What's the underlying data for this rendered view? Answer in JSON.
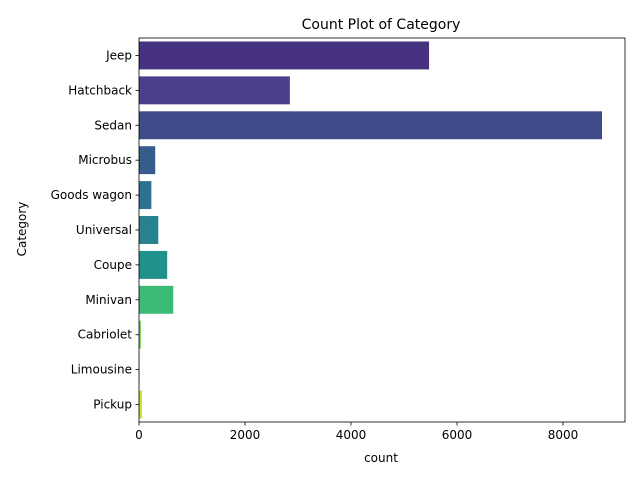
{
  "chart_data": {
    "type": "bar",
    "orientation": "horizontal",
    "title": "Count Plot of Category",
    "xlabel": "count",
    "ylabel": "Category",
    "categories": [
      "Jeep",
      "Hatchback",
      "Sedan",
      "Microbus",
      "Goods wagon",
      "Universal",
      "Coupe",
      "Minivan",
      "Cabriolet",
      "Limousine",
      "Pickup"
    ],
    "values": [
      5473,
      2847,
      8736,
      306,
      233,
      364,
      532,
      647,
      36,
      11,
      52
    ],
    "xlim": [
      0,
      9170
    ],
    "xticks": [
      0,
      2000,
      4000,
      6000,
      8000
    ],
    "grid": false,
    "legend": "none",
    "colors": [
      "#46327e",
      "#4a3f8a",
      "#3e4c8a",
      "#365c8d",
      "#2c728e",
      "#26828e",
      "#21918c",
      "#3bbb75",
      "#75d054",
      "#b8de29",
      "#c6e021"
    ]
  }
}
